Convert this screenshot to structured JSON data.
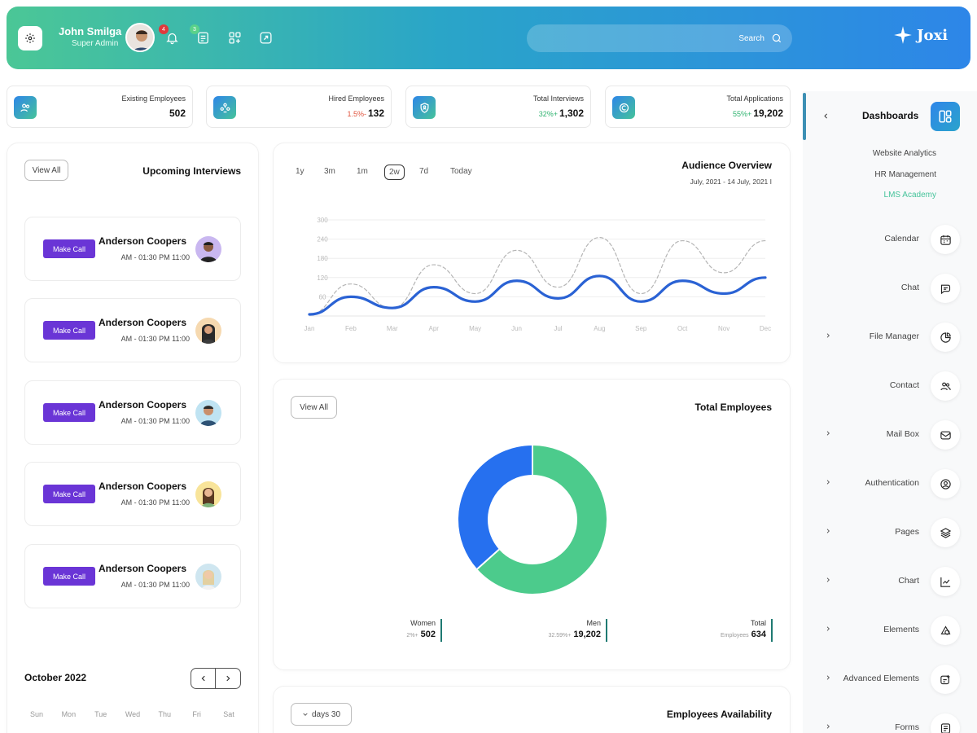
{
  "header": {
    "user_name": "John Smilga",
    "user_role": "Super Admin",
    "notif_count": "4",
    "task_count": "3",
    "search_label": "Search",
    "brand": "Joxi",
    "colors": {
      "start": "#4bc796",
      "end": "#2d86e8"
    }
  },
  "stats": [
    {
      "label": "Existing Employees",
      "pct": "",
      "value": "502"
    },
    {
      "label": "Hired Employees",
      "pct": "1.5%-",
      "value": "132",
      "pct_color": "#e0533c"
    },
    {
      "label": "Total Interviews",
      "pct": "32%+",
      "value": "1,302",
      "pct_color": "#2fb36f"
    },
    {
      "label": "Total Applications",
      "pct": "55%+",
      "value": "19,202",
      "pct_color": "#2fb36f"
    }
  ],
  "interviews": {
    "view_all": "View All",
    "title": "Upcoming Interviews",
    "items": [
      {
        "call": "Make Call",
        "name": "Anderson Coopers",
        "time": "AM - 01:30 PM 11:00"
      },
      {
        "call": "Make Call",
        "name": "Anderson Coopers",
        "time": "AM - 01:30 PM 11:00"
      },
      {
        "call": "Make Call",
        "name": "Anderson Coopers",
        "time": "AM - 01:30 PM 11:00"
      },
      {
        "call": "Make Call",
        "name": "Anderson Coopers",
        "time": "AM - 01:30 PM 11:00"
      },
      {
        "call": "Make Call",
        "name": "Anderson Coopers",
        "time": "AM - 01:30 PM 11:00"
      }
    ]
  },
  "calendar": {
    "month": "October 2022",
    "days": [
      "Sun",
      "Mon",
      "Tue",
      "Wed",
      "Thu",
      "Fri",
      "Sat"
    ]
  },
  "audience": {
    "title": "Audience Overview",
    "range": "July, 2021 - 14 July, 2021 I",
    "timeframes": [
      "1y",
      "3m",
      "1m",
      "2w",
      "7d",
      "Today"
    ],
    "active_timeframe": "2w"
  },
  "chart_data": {
    "type": "line",
    "categories": [
      "Jan",
      "Feb",
      "Mar",
      "Apr",
      "May",
      "Jun",
      "Jul",
      "Aug",
      "Sep",
      "Oct",
      "Nov",
      "Dec"
    ],
    "yticks": [
      "300",
      "240",
      "180",
      "120",
      "60"
    ],
    "ylim": [
      0,
      300
    ],
    "grid": true,
    "series": [
      {
        "style": "solid",
        "color": "#2a62d4",
        "values": [
          5,
          60,
          25,
          90,
          45,
          110,
          55,
          125,
          45,
          110,
          70,
          120
        ]
      },
      {
        "style": "dashed",
        "color": "#b5b5b5",
        "values": [
          5,
          100,
          25,
          160,
          70,
          205,
          90,
          245,
          70,
          235,
          135,
          235
        ]
      }
    ]
  },
  "employees": {
    "view_all": "View All",
    "title": "Total Employees",
    "donut": [
      {
        "value": 634,
        "color": "#4ccb8c"
      },
      {
        "value": 366,
        "color": "#2670ef"
      }
    ],
    "legend": [
      {
        "name": "Women",
        "pct": "2%+",
        "value": "502"
      },
      {
        "name": "Men",
        "pct": "32.59%+",
        "value": "19,202"
      },
      {
        "name": "Total",
        "pct": "Employees",
        "value": "634"
      }
    ]
  },
  "availability": {
    "filter": "days 30",
    "title": "Employees Availability"
  },
  "sidebar": {
    "title": "Dashboards",
    "subitems": [
      "Website Analytics",
      "HR Management",
      "LMS Academy"
    ],
    "active_color": "#45c39a",
    "items": [
      {
        "label": "Calendar",
        "icon": "calendar-icon",
        "chevron": false
      },
      {
        "label": "Chat",
        "icon": "chat-icon",
        "chevron": false
      },
      {
        "label": "File Manager",
        "icon": "file-manager-icon",
        "chevron": true
      },
      {
        "label": "Contact",
        "icon": "contact-icon",
        "chevron": false
      },
      {
        "label": "Mail Box",
        "icon": "mail-icon",
        "chevron": true
      },
      {
        "label": "Authentication",
        "icon": "auth-icon",
        "chevron": true
      },
      {
        "label": "Pages",
        "icon": "pages-icon",
        "chevron": true
      },
      {
        "label": "Chart",
        "icon": "chart-icon",
        "chevron": true
      },
      {
        "label": "Elements",
        "icon": "elements-icon",
        "chevron": true
      },
      {
        "label": "Advanced Elements",
        "icon": "advanced-elements-icon",
        "chevron": true
      },
      {
        "label": "Forms",
        "icon": "forms-icon",
        "chevron": true
      }
    ]
  }
}
